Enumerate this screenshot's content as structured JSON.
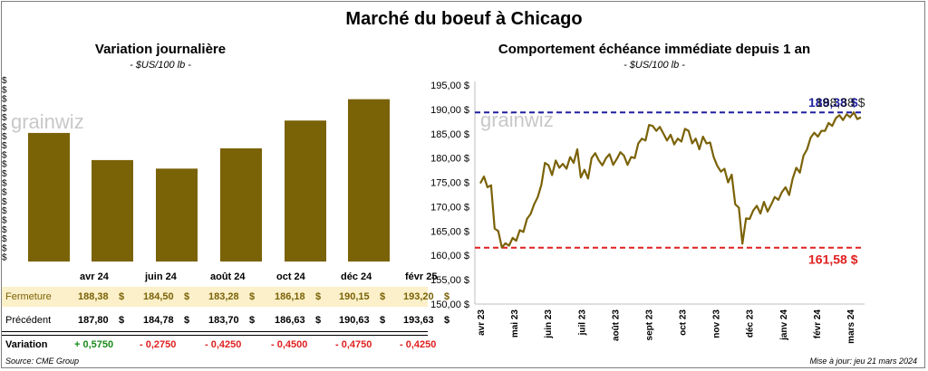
{
  "title": "Marché du boeuf à Chicago",
  "watermark": "grainwiz",
  "colors": {
    "bar": "#7a6207",
    "line": "#7a6207",
    "max_line": "#1f1f9f",
    "min_line": "#e02020",
    "row_highlight": "#fbf0c9",
    "positive": "#1a8a1a",
    "negative": "#e02020"
  },
  "left_panel": {
    "title": "Variation journalière",
    "subtitle": "- $US/100 lb -",
    "y_tick_label": "$",
    "row_labels": {
      "close": "Fermeture",
      "previous": "Précédent",
      "variation": "Variation"
    },
    "currency": "$",
    "table": [
      {
        "month": "avr 24",
        "close": "188,38",
        "previous": "187,80",
        "variation": "+ 0,5750"
      },
      {
        "month": "juin 24",
        "close": "184,50",
        "previous": "184,78",
        "variation": "- 0,2750"
      },
      {
        "month": "août 24",
        "close": "183,28",
        "previous": "183,70",
        "variation": "- 0,4250"
      },
      {
        "month": "oct 24",
        "close": "186,18",
        "previous": "186,63",
        "variation": "- 0,4500"
      },
      {
        "month": "déc 24",
        "close": "190,15",
        "previous": "190,63",
        "variation": "- 0,4750"
      },
      {
        "month": "févr 25",
        "close": "193,20",
        "previous": "193,63",
        "variation": "- 0,4250"
      }
    ]
  },
  "right_panel": {
    "title": "Comportement  échéance immédiate depuis 1 an",
    "subtitle": "- $US/100 lb -",
    "max_label": "189,38 $",
    "max_label_overlap": "188,38 $",
    "min_label": "161,58 $"
  },
  "chart_data": [
    {
      "type": "bar",
      "title": "Variation journalière",
      "subtitle": "$US/100 lb",
      "categories": [
        "avr 24",
        "juin 24",
        "août 24",
        "oct 24",
        "déc 24",
        "févr 25"
      ],
      "values": [
        188.38,
        184.5,
        183.28,
        186.18,
        190.15,
        193.2
      ],
      "ylim": [
        170,
        196
      ]
    },
    {
      "type": "line",
      "title": "Comportement  échéance immédiate depuis 1 an",
      "subtitle": "$US/100 lb",
      "x_ticks": [
        "avr 23",
        "mai 23",
        "juin 23",
        "juil 23",
        "août 23",
        "sept 23",
        "oct 23",
        "nov 23",
        "déc 23",
        "janv 24",
        "févr 24",
        "mars 24"
      ],
      "y_ticks": [
        "150,00 $",
        "155,00 $",
        "160,00 $",
        "165,00 $",
        "170,00 $",
        "175,00 $",
        "180,00 $",
        "185,00 $",
        "190,00 $",
        "195,00 $"
      ],
      "ylim": [
        150,
        195
      ],
      "max_value": 189.38,
      "last_value": 188.38,
      "min_value": 161.58,
      "series": [
        {
          "values": [
            174.8,
            176.2,
            174.0,
            174.4,
            165.5,
            165.0,
            161.6,
            162.5,
            162.0,
            163.6,
            163.0,
            165.2,
            164.8,
            167.5,
            168.5,
            170.5,
            172.0,
            174.5,
            179.0,
            178.5,
            176.5,
            179.5,
            178.0,
            178.8,
            177.8,
            180.2,
            179.0,
            181.8,
            176.0,
            177.6,
            175.8,
            180.0,
            181.0,
            179.5,
            178.5,
            180.0,
            180.8,
            178.6,
            179.8,
            181.2,
            180.5,
            178.6,
            180.2,
            180.0,
            183.0,
            184.0,
            183.6,
            186.8,
            186.6,
            185.6,
            186.4,
            185.0,
            183.6,
            184.8,
            182.8,
            184.0,
            183.4,
            186.0,
            185.6,
            183.0,
            184.0,
            181.8,
            184.4,
            183.0,
            183.2,
            180.2,
            178.4,
            177.2,
            177.8,
            175.0,
            176.6,
            170.5,
            169.8,
            162.4,
            167.6,
            167.5,
            169.2,
            170.2,
            168.6,
            171.0,
            169.0,
            170.4,
            172.0,
            171.4,
            173.0,
            174.0,
            172.4,
            175.8,
            178.0,
            177.0,
            180.5,
            181.8,
            184.2,
            185.2,
            184.4,
            185.6,
            185.6,
            187.2,
            186.6,
            188.2,
            188.8,
            187.8,
            189.0,
            188.4,
            189.38,
            188.0,
            188.38
          ]
        }
      ]
    }
  ],
  "footer": {
    "source": "Source: CME Group",
    "updated": "Mise à jour: jeu 21 mars 2024"
  }
}
